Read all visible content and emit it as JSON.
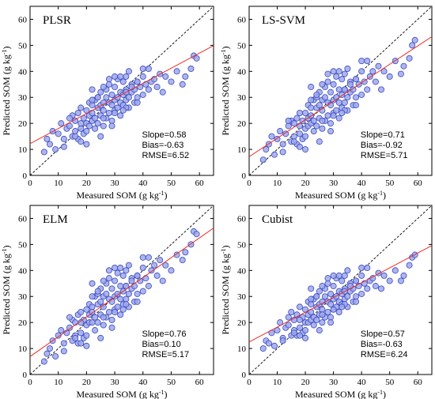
{
  "figure": {
    "colors": {
      "marker_fill": "#9fa8ea",
      "marker_edge": "#3a4bc4",
      "fit_line": "#e8302a",
      "identity_line": "#000000"
    }
  },
  "chart_data": [
    {
      "type": "scatter",
      "title": "PLSR",
      "xlabel": "Measured SOM (g kg-1)",
      "ylabel": "Predicted SOM (g kg-1)",
      "xlim": [
        0,
        65
      ],
      "ylim": [
        0,
        65
      ],
      "xticks": [
        0,
        10,
        20,
        30,
        40,
        50,
        60
      ],
      "yticks": [
        0,
        10,
        20,
        30,
        40,
        50,
        60
      ],
      "stats": {
        "slope": "Slope=0.58",
        "bias": "Bias=-0.63",
        "rmse": "RMSE=6.52"
      },
      "fit_line": {
        "slope": 0.58,
        "intercept": 12.2
      },
      "identity_line": true,
      "x": [
        5,
        6,
        7,
        8,
        9,
        10,
        11,
        12,
        13,
        14,
        15,
        15,
        16,
        16,
        17,
        17,
        18,
        18,
        19,
        19,
        20,
        20,
        20,
        21,
        21,
        21,
        22,
        22,
        22,
        23,
        23,
        23,
        24,
        24,
        24,
        25,
        25,
        25,
        26,
        26,
        26,
        27,
        27,
        27,
        28,
        28,
        28,
        29,
        29,
        29,
        30,
        30,
        30,
        31,
        31,
        31,
        32,
        32,
        32,
        33,
        33,
        33,
        34,
        34,
        34,
        35,
        35,
        35,
        36,
        36,
        37,
        37,
        38,
        38,
        39,
        40,
        40,
        41,
        42,
        43,
        44,
        45,
        46,
        47,
        48,
        50,
        52,
        54,
        55,
        57,
        58,
        59,
        18,
        22,
        26,
        30,
        34,
        38,
        12,
        16,
        20,
        24,
        28,
        32,
        36,
        40,
        14,
        18,
        22,
        26,
        30,
        34,
        38,
        42,
        25,
        29,
        33
      ],
      "y": [
        9,
        14,
        12,
        17,
        10,
        16,
        20,
        14,
        18,
        19,
        15,
        23,
        17,
        21,
        14,
        24,
        18,
        26,
        16,
        22,
        20,
        25,
        17,
        19,
        23,
        28,
        21,
        27,
        24,
        18,
        22,
        29,
        20,
        26,
        30,
        23,
        27,
        32,
        19,
        25,
        28,
        22,
        30,
        33,
        24,
        28,
        35,
        21,
        27,
        31,
        25,
        29,
        34,
        26,
        30,
        37,
        23,
        28,
        32,
        27,
        31,
        36,
        29,
        33,
        38,
        26,
        30,
        40,
        32,
        35,
        28,
        33,
        30,
        36,
        34,
        31,
        38,
        35,
        33,
        36,
        37,
        34,
        39,
        32,
        38,
        36,
        40,
        35,
        38,
        41,
        46,
        45,
        20,
        29,
        34,
        24,
        32,
        28,
        11,
        15,
        12,
        30,
        37,
        38,
        34,
        41,
        22,
        13,
        33,
        22,
        38,
        26,
        36,
        41,
        15,
        19,
        25
      ]
    },
    {
      "type": "scatter",
      "title": "LS-SVM",
      "xlabel": "Measured SOM (g kg-1)",
      "ylabel": "Predicted SOM (g kg-1)",
      "xlim": [
        0,
        65
      ],
      "ylim": [
        0,
        65
      ],
      "xticks": [
        0,
        10,
        20,
        30,
        40,
        50,
        60
      ],
      "yticks": [
        0,
        10,
        20,
        30,
        40,
        50,
        60
      ],
      "stats": {
        "slope": "Slope=0.71",
        "bias": "Bias=-0.92",
        "rmse": "RMSE=5.71"
      },
      "fit_line": {
        "slope": 0.71,
        "intercept": 7.2
      },
      "identity_line": true,
      "x": [
        5,
        6,
        7,
        8,
        9,
        10,
        11,
        12,
        13,
        14,
        15,
        15,
        16,
        16,
        17,
        17,
        18,
        18,
        19,
        19,
        20,
        20,
        20,
        21,
        21,
        21,
        22,
        22,
        22,
        23,
        23,
        23,
        24,
        24,
        24,
        25,
        25,
        25,
        26,
        26,
        26,
        27,
        27,
        27,
        28,
        28,
        28,
        29,
        29,
        29,
        30,
        30,
        30,
        31,
        31,
        31,
        32,
        32,
        32,
        33,
        33,
        33,
        34,
        34,
        34,
        35,
        35,
        35,
        36,
        36,
        37,
        37,
        38,
        38,
        39,
        40,
        40,
        41,
        42,
        43,
        44,
        45,
        46,
        47,
        48,
        50,
        52,
        54,
        55,
        57,
        58,
        59,
        18,
        22,
        26,
        30,
        34,
        38,
        12,
        16,
        20,
        24,
        28,
        32,
        36,
        40,
        14,
        18,
        22,
        26,
        30,
        34,
        38,
        42,
        25,
        29,
        33
      ],
      "y": [
        6,
        10,
        12,
        15,
        8,
        14,
        17,
        12,
        16,
        19,
        13,
        21,
        15,
        20,
        12,
        22,
        16,
        24,
        14,
        21,
        18,
        24,
        15,
        19,
        22,
        27,
        20,
        26,
        23,
        17,
        21,
        29,
        19,
        26,
        30,
        22,
        27,
        32,
        18,
        25,
        29,
        21,
        30,
        34,
        23,
        28,
        36,
        20,
        27,
        32,
        24,
        29,
        35,
        25,
        30,
        38,
        22,
        28,
        33,
        26,
        31,
        37,
        28,
        33,
        39,
        25,
        30,
        41,
        32,
        36,
        27,
        33,
        30,
        37,
        35,
        31,
        40,
        36,
        33,
        38,
        40,
        36,
        42,
        33,
        40,
        38,
        44,
        39,
        42,
        45,
        50,
        52,
        19,
        29,
        35,
        23,
        33,
        27,
        9,
        13,
        10,
        31,
        39,
        40,
        35,
        44,
        21,
        11,
        34,
        21,
        40,
        25,
        37,
        44,
        13,
        17,
        24
      ]
    },
    {
      "type": "scatter",
      "title": "ELM",
      "xlabel": "Measured SOM (g kg-1)",
      "ylabel": "Predicted SOM (g kg-1)",
      "xlim": [
        0,
        65
      ],
      "ylim": [
        0,
        65
      ],
      "xticks": [
        0,
        10,
        20,
        30,
        40,
        50,
        60
      ],
      "yticks": [
        0,
        10,
        20,
        30,
        40,
        50,
        60
      ],
      "stats": {
        "slope": "Slope=0.76",
        "bias": "Bias=0.10",
        "rmse": "RMSE=5.17"
      },
      "fit_line": {
        "slope": 0.76,
        "intercept": 6.9
      },
      "identity_line": true,
      "x": [
        5,
        6,
        7,
        8,
        9,
        10,
        11,
        12,
        13,
        14,
        15,
        15,
        16,
        16,
        17,
        17,
        18,
        18,
        19,
        19,
        20,
        20,
        20,
        21,
        21,
        21,
        22,
        22,
        22,
        23,
        23,
        23,
        24,
        24,
        24,
        25,
        25,
        25,
        26,
        26,
        26,
        27,
        27,
        27,
        28,
        28,
        28,
        29,
        29,
        29,
        30,
        30,
        30,
        31,
        31,
        31,
        32,
        32,
        32,
        33,
        33,
        33,
        34,
        34,
        34,
        35,
        35,
        35,
        36,
        36,
        37,
        37,
        38,
        38,
        39,
        40,
        40,
        41,
        42,
        43,
        44,
        45,
        46,
        47,
        48,
        50,
        52,
        54,
        55,
        57,
        58,
        59,
        18,
        22,
        26,
        30,
        34,
        38,
        12,
        16,
        20,
        24,
        28,
        32,
        36,
        40,
        14,
        18,
        22,
        26,
        30,
        34,
        38,
        42,
        25,
        29,
        33
      ],
      "y": [
        5,
        8,
        10,
        13,
        7,
        15,
        17,
        12,
        16,
        18,
        13,
        21,
        15,
        20,
        12,
        23,
        16,
        24,
        14,
        21,
        19,
        25,
        15,
        20,
        23,
        27,
        20,
        26,
        24,
        17,
        22,
        30,
        20,
        27,
        31,
        23,
        28,
        33,
        19,
        26,
        30,
        22,
        31,
        35,
        24,
        29,
        37,
        21,
        28,
        33,
        25,
        30,
        36,
        26,
        31,
        39,
        23,
        29,
        34,
        27,
        32,
        38,
        29,
        34,
        40,
        26,
        31,
        42,
        33,
        37,
        28,
        34,
        31,
        38,
        36,
        32,
        41,
        37,
        34,
        40,
        42,
        38,
        44,
        36,
        42,
        40,
        46,
        44,
        47,
        50,
        55,
        54,
        20,
        30,
        36,
        24,
        34,
        28,
        9,
        14,
        11,
        32,
        40,
        41,
        36,
        45,
        22,
        12,
        35,
        22,
        41,
        27,
        38,
        45,
        14,
        18,
        25
      ]
    },
    {
      "type": "scatter",
      "title": "Cubist",
      "xlabel": "Measured SOM (g kg-1)",
      "ylabel": "Predicted SOM (g kg-1)",
      "xlim": [
        0,
        65
      ],
      "ylim": [
        0,
        65
      ],
      "xticks": [
        0,
        10,
        20,
        30,
        40,
        50,
        60
      ],
      "yticks": [
        0,
        10,
        20,
        30,
        40,
        50,
        60
      ],
      "stats": {
        "slope": "Slope=0.57",
        "bias": "Bias=-0.63",
        "rmse": "RMSE=6.24"
      },
      "fit_line": {
        "slope": 0.57,
        "intercept": 12.5
      },
      "identity_line": true,
      "x": [
        5,
        6,
        7,
        8,
        9,
        10,
        11,
        12,
        13,
        14,
        15,
        15,
        16,
        16,
        17,
        17,
        18,
        18,
        19,
        19,
        20,
        20,
        20,
        21,
        21,
        21,
        22,
        22,
        22,
        23,
        23,
        23,
        24,
        24,
        24,
        25,
        25,
        25,
        26,
        26,
        26,
        27,
        27,
        27,
        28,
        28,
        28,
        29,
        29,
        29,
        30,
        30,
        30,
        31,
        31,
        31,
        32,
        32,
        32,
        33,
        33,
        33,
        34,
        34,
        34,
        35,
        35,
        35,
        36,
        36,
        37,
        37,
        38,
        38,
        39,
        40,
        40,
        41,
        42,
        43,
        44,
        45,
        46,
        47,
        48,
        50,
        52,
        54,
        55,
        57,
        58,
        59,
        18,
        22,
        26,
        30,
        34,
        38,
        12,
        16,
        20,
        24,
        28,
        32,
        36,
        40,
        14,
        18,
        22,
        26,
        30,
        34,
        38,
        42,
        25,
        29,
        33
      ],
      "y": [
        10,
        13,
        12,
        16,
        11,
        17,
        20,
        14,
        18,
        19,
        15,
        24,
        17,
        21,
        15,
        23,
        18,
        26,
        16,
        22,
        20,
        25,
        17,
        20,
        23,
        28,
        21,
        27,
        24,
        19,
        22,
        29,
        21,
        26,
        30,
        23,
        27,
        32,
        20,
        25,
        28,
        22,
        30,
        33,
        24,
        28,
        35,
        22,
        27,
        31,
        25,
        29,
        34,
        26,
        30,
        37,
        24,
        28,
        32,
        27,
        31,
        36,
        29,
        33,
        38,
        26,
        30,
        40,
        32,
        35,
        28,
        33,
        30,
        36,
        34,
        31,
        38,
        35,
        33,
        36,
        37,
        34,
        39,
        33,
        38,
        36,
        40,
        36,
        38,
        42,
        45,
        46,
        21,
        29,
        34,
        25,
        32,
        28,
        13,
        16,
        14,
        30,
        37,
        38,
        34,
        41,
        22,
        15,
        33,
        23,
        38,
        27,
        36,
        41,
        17,
        20,
        26
      ]
    }
  ]
}
